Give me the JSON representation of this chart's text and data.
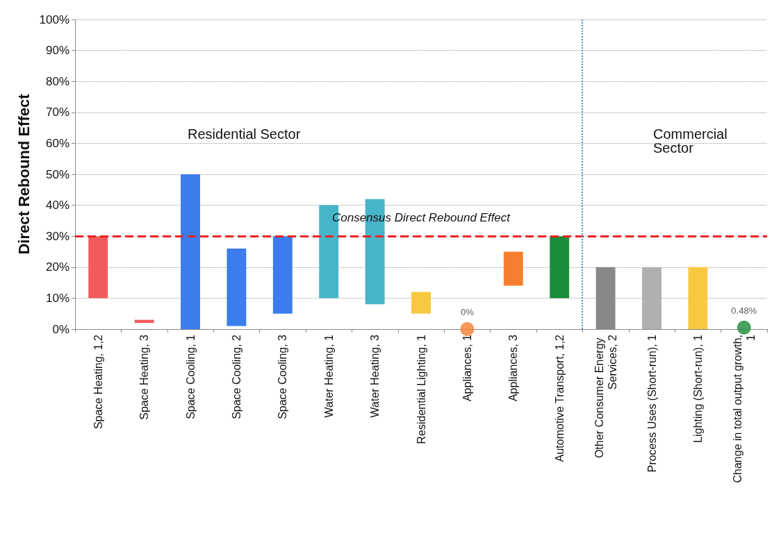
{
  "chart_data": {
    "type": "bar",
    "ylabel": "Direct Rebound Effect",
    "categories": [
      "Space Heating, 1,2",
      "Space Heating, 3",
      "Space Cooling, 1",
      "Space Cooling, 2",
      "Space Cooling, 3",
      "Water Heating, 1",
      "Water Heating, 3",
      "Residential Lighting, 1",
      "Appliances, 1",
      "Appliances, 3",
      "Automotive Transport, 1,2",
      "Other Consumer Energy Services, 2",
      "Process Uses (Short-run), 1",
      "Lighting (Short-run), 1",
      "Change in total output growth, 1"
    ],
    "series": [
      {
        "base": [
          10,
          2,
          0,
          1,
          5,
          10,
          8,
          5,
          null,
          14,
          10,
          0,
          0,
          0,
          null
        ],
        "values": [
          20,
          1,
          50,
          25,
          25,
          30,
          34,
          7,
          null,
          11,
          20,
          20,
          20,
          20,
          null
        ],
        "colors": [
          "#f25b5b",
          "#f25b5b",
          "#3b7ded",
          "#3b7ded",
          "#3b7ded",
          "#46b5c8",
          "#46b5c8",
          "#f8c840",
          null,
          "#f57f2f",
          "#1a8c3a",
          "#888888",
          "#b0b0b0",
          "#f8c840",
          null
        ]
      },
      {
        "type": "scatter",
        "x": [
          "Appliances, 1",
          "Change in total output growth, 1"
        ],
        "values": [
          0,
          0.48
        ],
        "colors": [
          "#f57f2f",
          "#1a8c3a"
        ],
        "value_labels": [
          "0%",
          "0.48%"
        ]
      }
    ],
    "ylim": [
      0,
      100
    ],
    "yticks": [
      {
        "value": 0,
        "label": "0%"
      },
      {
        "value": 10,
        "label": "10%"
      },
      {
        "value": 20,
        "label": "20%"
      },
      {
        "value": 30,
        "label": "30%"
      },
      {
        "value": 40,
        "label": "40%"
      },
      {
        "value": 50,
        "label": "50%"
      },
      {
        "value": 60,
        "label": "60%"
      },
      {
        "value": 70,
        "label": "70%"
      },
      {
        "value": 80,
        "label": "80%"
      },
      {
        "value": 90,
        "label": "90%"
      },
      {
        "value": 100,
        "label": "100%"
      }
    ],
    "grid": "y",
    "marker": "circle",
    "ref_lines": [
      {
        "axis": "y",
        "value": 30,
        "label": "Consensus Direct Rebound Effect",
        "color": "#ee2222",
        "line_style": "dashed"
      },
      {
        "axis": "x",
        "value": "Other Consumer Energy Services, 2",
        "color": "#4a90c8",
        "line_style": "dotted"
      }
    ],
    "annotations": [
      "Residential Sector",
      "Commercial\nSector"
    ]
  }
}
